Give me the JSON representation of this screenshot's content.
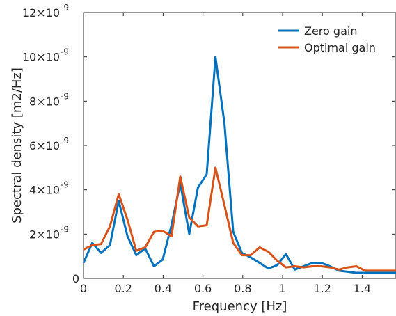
{
  "chart_data": {
    "type": "line",
    "xlabel": "Frequency [Hz]",
    "ylabel": "Spectral density [m2/Hz]",
    "xlim": [
      0,
      1.57
    ],
    "ylim": [
      0,
      1.2e-08
    ],
    "grid": false,
    "legend_position": "top-right",
    "x_ticks": [
      {
        "value": 0,
        "label": "0"
      },
      {
        "value": 0.2,
        "label": "0.2"
      },
      {
        "value": 0.4,
        "label": "0.4"
      },
      {
        "value": 0.6,
        "label": "0.6"
      },
      {
        "value": 0.8,
        "label": "0.8"
      },
      {
        "value": 1.0,
        "label": "1"
      },
      {
        "value": 1.2,
        "label": "1.2"
      },
      {
        "value": 1.4,
        "label": "1.4"
      }
    ],
    "y_ticks": [
      {
        "value": 0,
        "label": "0"
      },
      {
        "value": 2e-09,
        "label": "2×10",
        "exponent": "-9"
      },
      {
        "value": 4e-09,
        "label": "4×10",
        "exponent": "-9"
      },
      {
        "value": 6e-09,
        "label": "6×10",
        "exponent": "-9"
      },
      {
        "value": 8e-09,
        "label": "8×10",
        "exponent": "-9"
      },
      {
        "value": 1e-08,
        "label": "10×10",
        "exponent": "-9"
      },
      {
        "value": 1.2e-08,
        "label": "12×10",
        "exponent": "-9"
      }
    ],
    "x": [
      0,
      0.044,
      0.088,
      0.133,
      0.177,
      0.221,
      0.265,
      0.31,
      0.354,
      0.398,
      0.442,
      0.486,
      0.531,
      0.575,
      0.619,
      0.663,
      0.708,
      0.752,
      0.796,
      0.84,
      0.885,
      0.929,
      0.973,
      1.017,
      1.061,
      1.106,
      1.15,
      1.194,
      1.238,
      1.283,
      1.327,
      1.371,
      1.415,
      1.459,
      1.504,
      1.548,
      1.57
    ],
    "series": [
      {
        "name": "Zero gain",
        "color": "#0072BD",
        "values": [
          7e-10,
          1.6e-09,
          1.15e-09,
          1.5e-09,
          3.5e-09,
          1.9e-09,
          1.05e-09,
          1.35e-09,
          5.5e-10,
          8.5e-10,
          2.4e-09,
          4.3e-09,
          2e-09,
          4.1e-09,
          4.7e-09,
          1e-08,
          7e-09,
          2.1e-09,
          1.15e-09,
          9.5e-10,
          7e-10,
          4.5e-10,
          6e-10,
          1.1e-09,
          4e-10,
          5.5e-10,
          7e-10,
          7e-10,
          5.5e-10,
          3.5e-10,
          3e-10,
          2.5e-10,
          2.5e-10,
          2.5e-10,
          2.5e-10,
          2.5e-10,
          2.5e-10
        ]
      },
      {
        "name": "Optimal gain",
        "color": "#D95319",
        "values": [
          1.3e-09,
          1.5e-09,
          1.55e-09,
          2.35e-09,
          3.8e-09,
          2.65e-09,
          1.25e-09,
          1.4e-09,
          2.1e-09,
          2.15e-09,
          1.9e-09,
          4.6e-09,
          2.75e-09,
          2.35e-09,
          2.4e-09,
          5e-09,
          3.3e-09,
          1.6e-09,
          1.05e-09,
          1.05e-09,
          1.4e-09,
          1.2e-09,
          8e-10,
          5e-10,
          5.5e-10,
          5e-10,
          5.5e-10,
          5.5e-10,
          5e-10,
          4e-10,
          5e-10,
          5.5e-10,
          3.5e-10,
          3.5e-10,
          3.5e-10,
          3.5e-10,
          3.5e-10
        ]
      }
    ]
  }
}
